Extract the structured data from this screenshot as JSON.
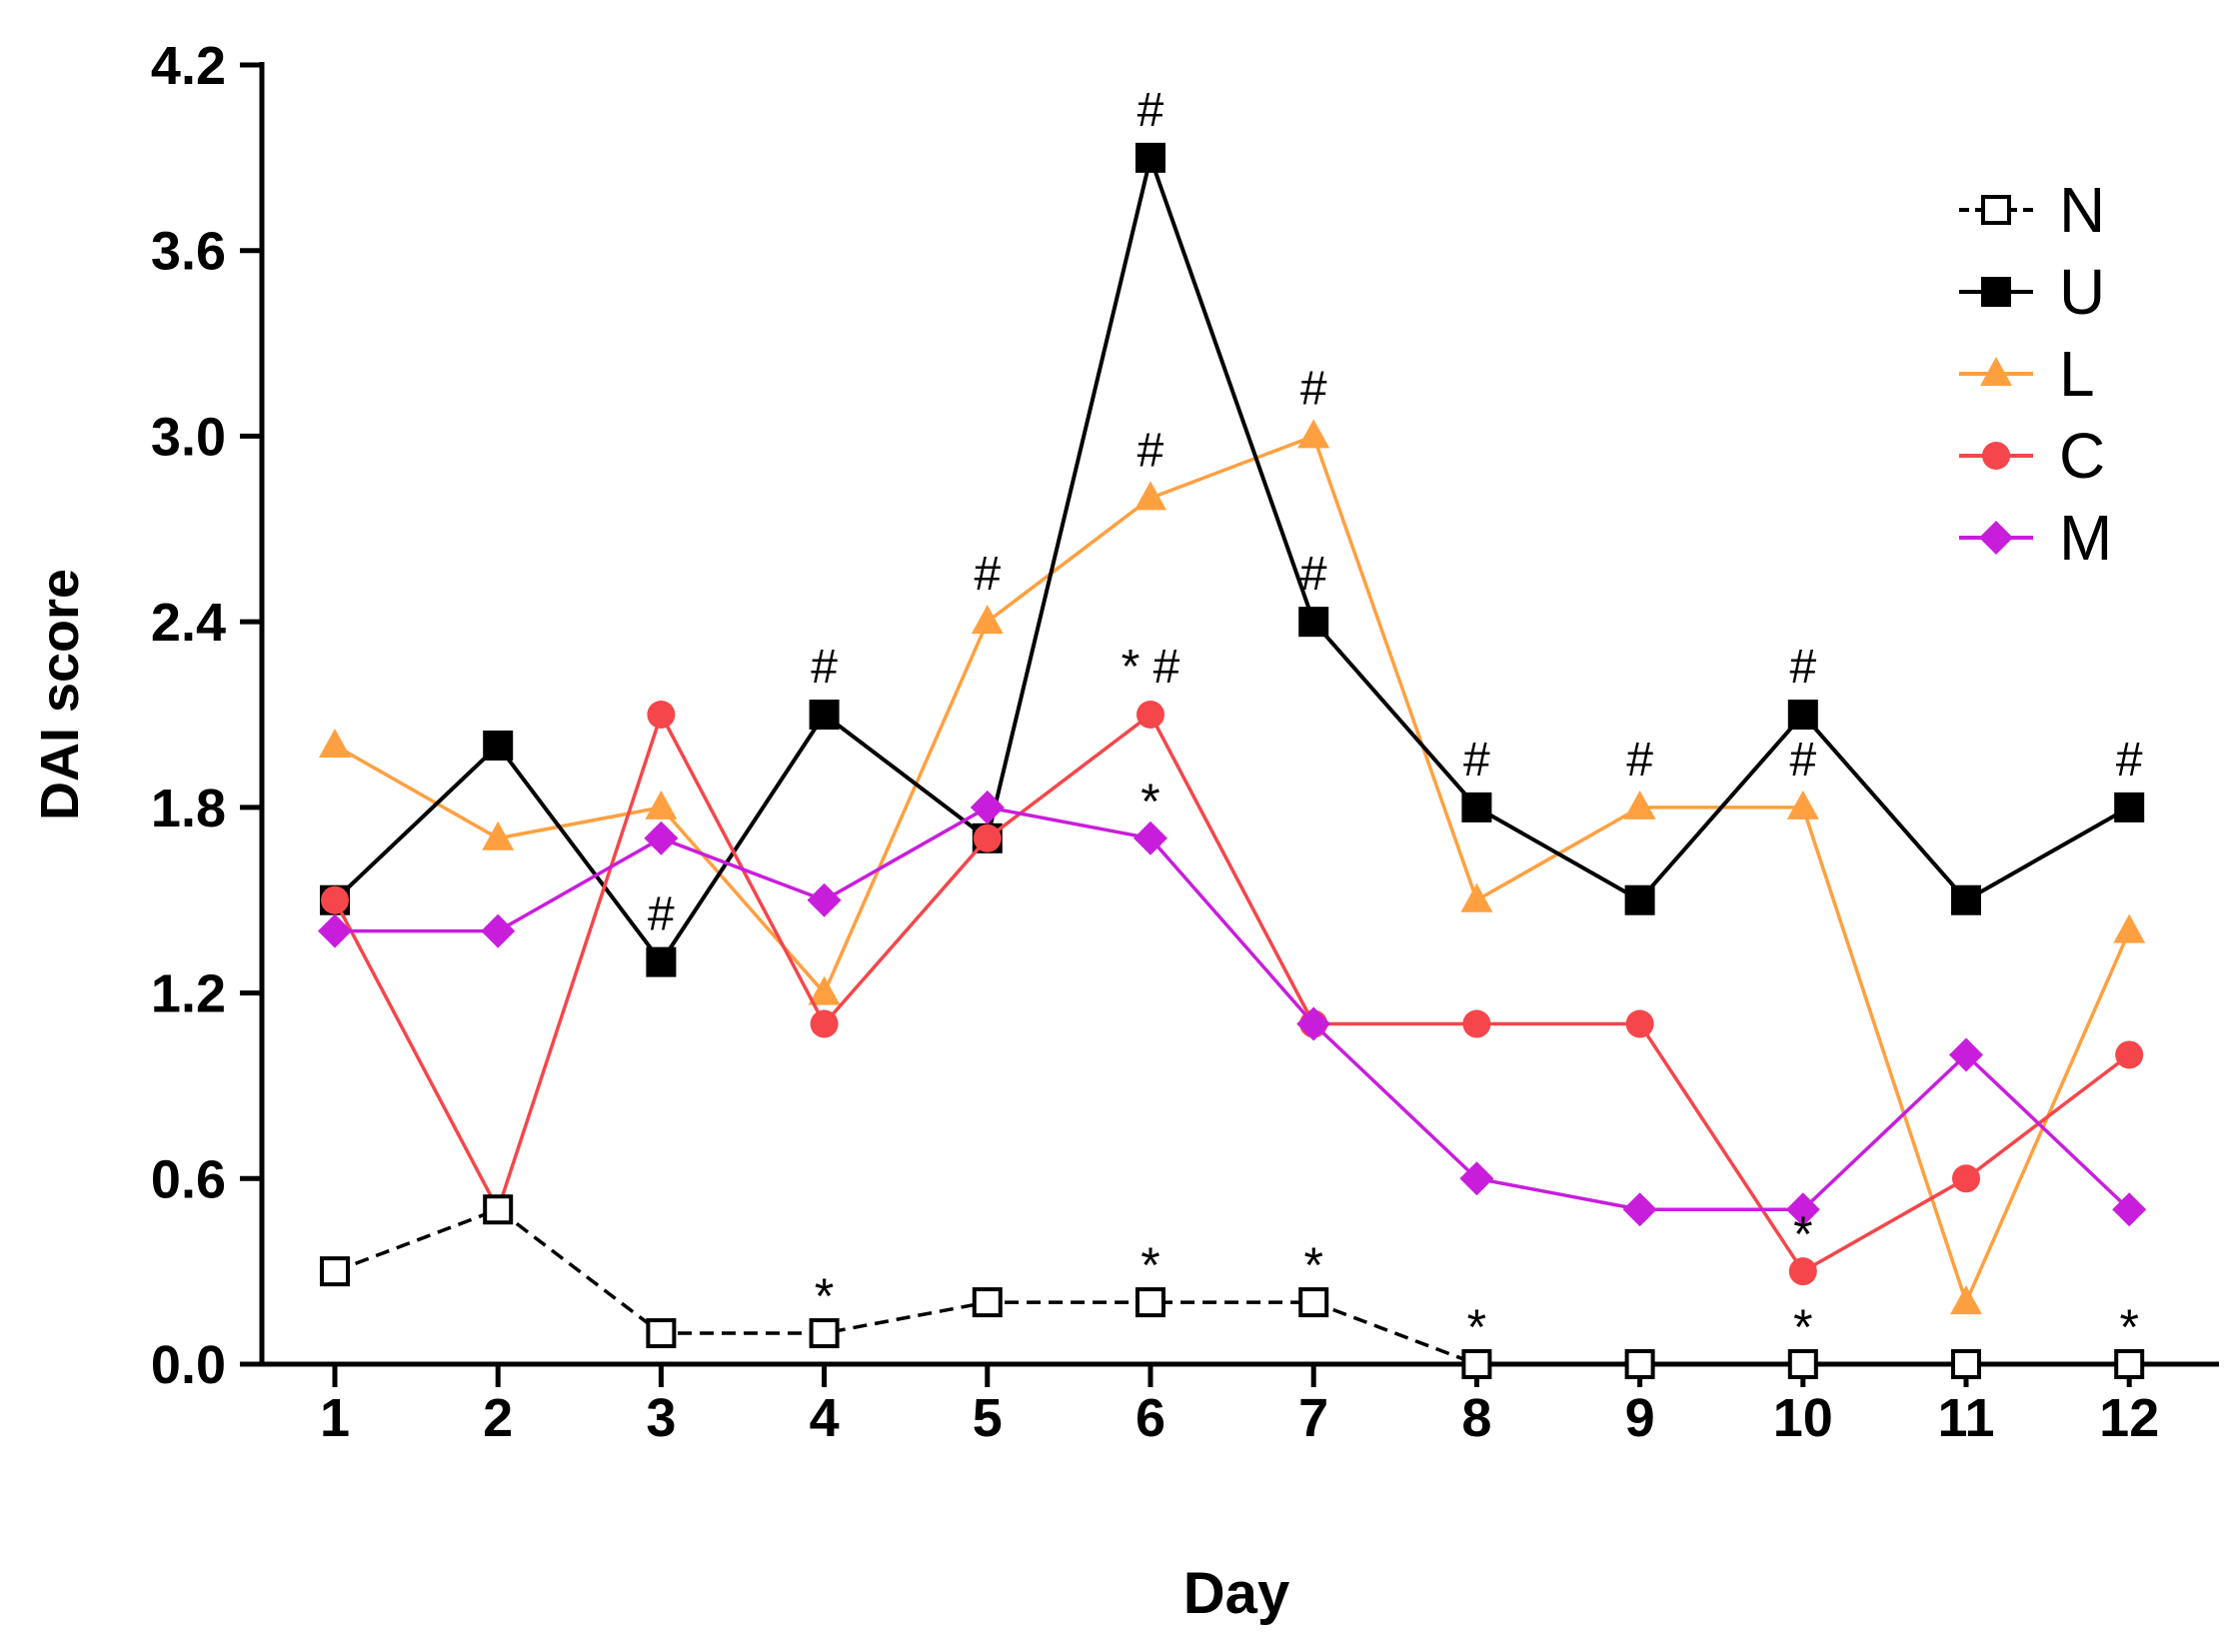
{
  "chart_data": {
    "type": "line",
    "xlabel": "Day",
    "ylabel": "DAI score",
    "x": [
      1,
      2,
      3,
      4,
      5,
      6,
      7,
      8,
      9,
      10,
      11,
      12
    ],
    "x_tick_labels": [
      "1",
      "2",
      "3",
      "4",
      "5",
      "6",
      "7",
      "8",
      "9",
      "10",
      "11",
      "12"
    ],
    "ylim": [
      0,
      4.2
    ],
    "y_ticks": [
      0,
      0.6,
      1.2,
      1.8,
      2.4,
      3.0,
      3.6,
      4.2
    ],
    "y_tick_labels": [
      "0.0",
      "0.6",
      "1.2",
      "1.8",
      "2.4",
      "3.0",
      "3.6",
      "4.2"
    ],
    "legend_position": "top-right",
    "series": [
      {
        "name": "N",
        "color": "#000000",
        "marker": "open-square",
        "dashed": true,
        "values": [
          0.3,
          0.5,
          0.1,
          0.1,
          0.2,
          0.2,
          0.2,
          0.0,
          0.0,
          0.0,
          0.0,
          0.0
        ]
      },
      {
        "name": "U",
        "color": "#000000",
        "marker": "filled-square",
        "dashed": false,
        "values": [
          1.5,
          2.0,
          1.3,
          2.1,
          1.7,
          3.9,
          2.4,
          1.8,
          1.5,
          2.1,
          1.5,
          1.8
        ]
      },
      {
        "name": "L",
        "color": "#FFA040",
        "marker": "triangle",
        "dashed": false,
        "values": [
          2.0,
          1.7,
          1.8,
          1.2,
          2.4,
          2.8,
          3.0,
          1.5,
          1.8,
          1.8,
          0.2,
          1.4
        ]
      },
      {
        "name": "C",
        "color": "#F5464B",
        "marker": "circle",
        "dashed": false,
        "values": [
          1.5,
          0.5,
          2.1,
          1.1,
          1.7,
          2.1,
          1.1,
          1.1,
          1.1,
          0.3,
          0.6,
          1.0
        ]
      },
      {
        "name": "M",
        "color": "#C81EDC",
        "marker": "diamond",
        "dashed": false,
        "values": [
          1.4,
          1.4,
          1.7,
          1.5,
          1.8,
          1.7,
          1.1,
          0.6,
          0.5,
          0.5,
          1.0,
          0.5
        ]
      }
    ],
    "annotations": [
      {
        "text": "#",
        "series": "U",
        "x": 3
      },
      {
        "text": "#",
        "series": "U",
        "x": 4
      },
      {
        "text": "#",
        "series": "L",
        "x": 5
      },
      {
        "text": "#",
        "series": "U",
        "x": 6
      },
      {
        "text": "#",
        "series": "L",
        "x": 6
      },
      {
        "text": "* #",
        "series": "C",
        "x": 6
      },
      {
        "text": "*",
        "series": "M",
        "x": 6
      },
      {
        "text": "#",
        "series": "L",
        "x": 7
      },
      {
        "text": "#",
        "series": "U",
        "x": 7
      },
      {
        "text": "#",
        "series": "U",
        "x": 8
      },
      {
        "text": "#",
        "series": "L",
        "x": 9
      },
      {
        "text": "#",
        "series": "U",
        "x": 10
      },
      {
        "text": "#",
        "series": "L",
        "x": 10
      },
      {
        "text": "#",
        "series": "U",
        "x": 12
      },
      {
        "text": "*",
        "series": "N",
        "x": 4
      },
      {
        "text": "*",
        "series": "N",
        "x": 6
      },
      {
        "text": "*",
        "series": "N",
        "x": 7
      },
      {
        "text": "*",
        "series": "N",
        "x": 8
      },
      {
        "text": "*",
        "series": "N",
        "x": 10
      },
      {
        "text": "*",
        "series": "C",
        "x": 10
      },
      {
        "text": "*",
        "series": "N",
        "x": 12
      }
    ]
  }
}
